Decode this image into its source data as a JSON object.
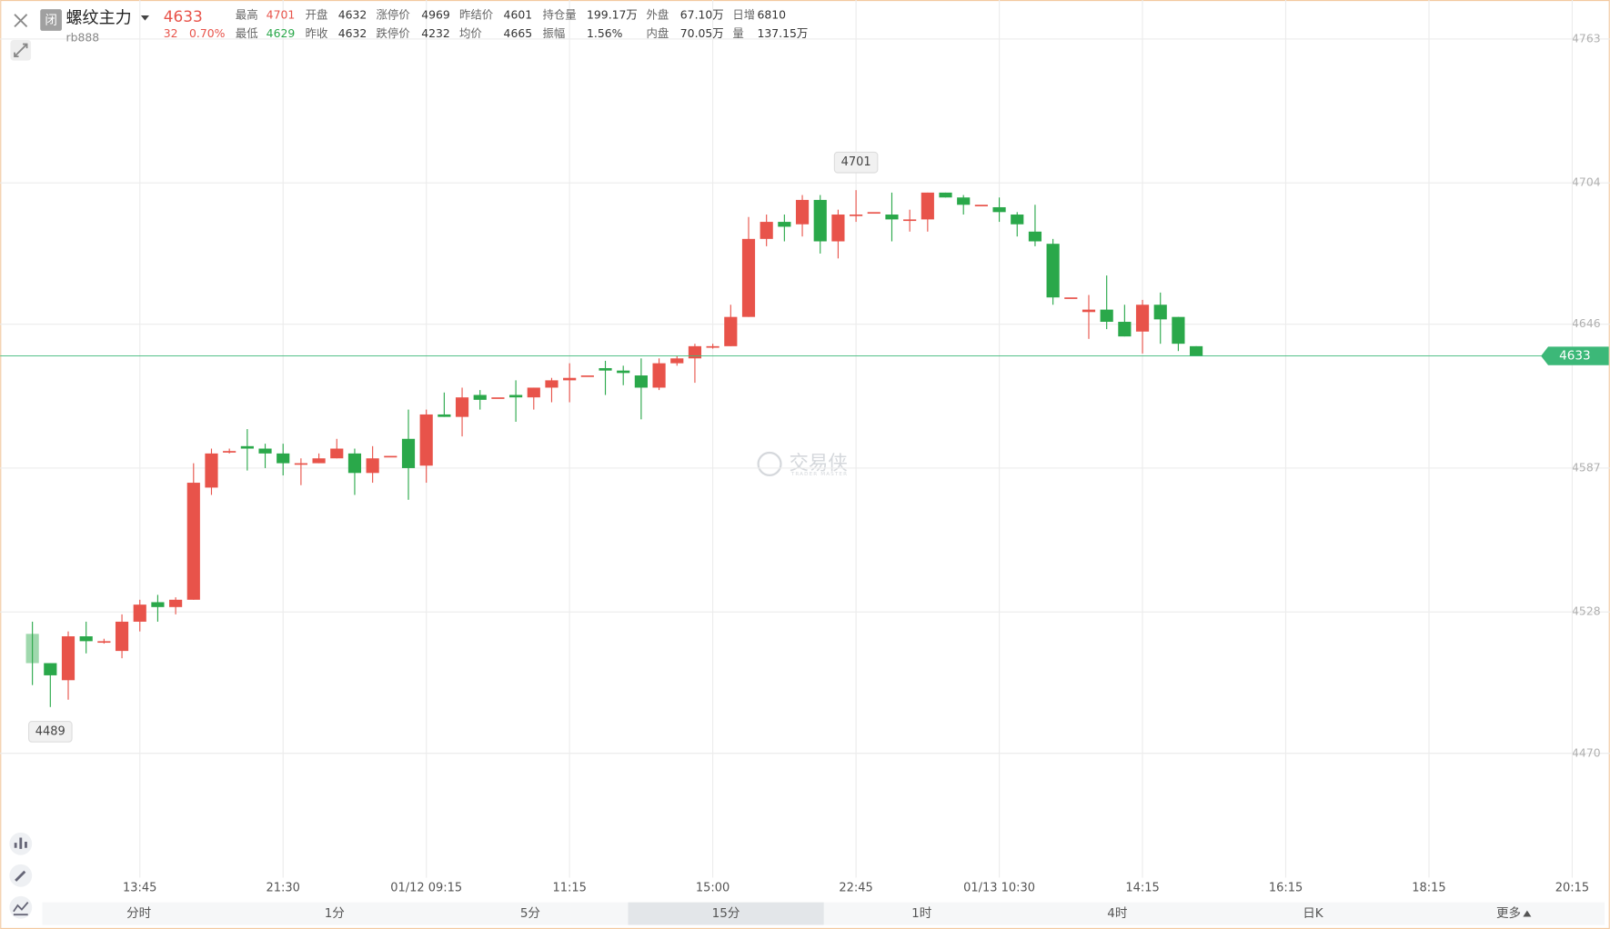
{
  "header": {
    "badge": "闭",
    "title": "螺纹主力",
    "code": "rb888",
    "price": "4633",
    "change": "32",
    "change_pct": "0.70%",
    "stats": [
      [
        {
          "label": "最高",
          "value": "4701",
          "color": "#e8534a"
        },
        {
          "label": "最低",
          "value": "4629",
          "color": "#2aa84a"
        }
      ],
      [
        {
          "label": "开盘",
          "value": "4632",
          "color": "#333333"
        },
        {
          "label": "昨收",
          "value": "4632",
          "color": "#333333"
        }
      ],
      [
        {
          "label": "涨停价",
          "value": "4969",
          "color": "#333333"
        },
        {
          "label": "跌停价",
          "value": "4232",
          "color": "#333333"
        }
      ],
      [
        {
          "label": "昨结价",
          "value": "4601",
          "color": "#333333"
        },
        {
          "label": "均价",
          "value": "4665",
          "color": "#333333"
        }
      ],
      [
        {
          "label": "持仓量",
          "value": "199.17万",
          "color": "#333333"
        },
        {
          "label": "振幅",
          "value": "1.56%",
          "color": "#333333"
        }
      ],
      [
        {
          "label": "外盘",
          "value": "67.10万",
          "color": "#333333"
        },
        {
          "label": "内盘",
          "value": "70.05万",
          "color": "#333333"
        }
      ],
      [
        {
          "label": "日增",
          "value": "6810",
          "color": "#333333"
        },
        {
          "label": "量",
          "value": "137.15万",
          "color": "#333333"
        }
      ]
    ]
  },
  "chart_data": {
    "type": "candlestick",
    "open": [
      4519,
      4507,
      4500,
      4518,
      4516,
      4512,
      4524,
      4532,
      4530,
      4533,
      4579,
      4594,
      4596,
      4595,
      4593,
      4589,
      4589,
      4591,
      4593,
      4585,
      4592,
      4599,
      4588,
      4609,
      4608,
      4617,
      4616,
      4617,
      4616,
      4620,
      4623,
      4625,
      4628,
      4627,
      4625,
      4620,
      4630,
      4632,
      4637,
      4637,
      4649,
      4681,
      4688,
      4687,
      4697,
      4680,
      4691,
      4692,
      4691,
      4689,
      4689,
      4700,
      4698,
      4695,
      4694,
      4691,
      4684,
      4679,
      4657,
      4651,
      4652,
      4647,
      4643,
      4654,
      4649,
      4637
    ],
    "high": [
      4524,
      4507,
      4520,
      4524,
      4517,
      4527,
      4533,
      4535,
      4534,
      4589,
      4595,
      4595,
      4603,
      4597,
      4597,
      4591,
      4593,
      4599,
      4595,
      4596,
      4592,
      4611,
      4611,
      4618,
      4620,
      4619,
      4616,
      4623,
      4620,
      4624,
      4630,
      4625,
      4631,
      4629,
      4632,
      4632,
      4633,
      4638,
      4638,
      4654,
      4690,
      4691,
      4691,
      4699,
      4699,
      4693,
      4701,
      4692,
      4700,
      4693,
      4700,
      4700,
      4699,
      4695,
      4698,
      4692,
      4695,
      4681,
      4657,
      4658,
      4666,
      4654,
      4656,
      4659,
      4649,
      4637
    ],
    "low": [
      4498,
      4489,
      4492,
      4511,
      4515,
      4509,
      4520,
      4524,
      4527,
      4533,
      4576,
      4593,
      4586,
      4587,
      4584,
      4580,
      4589,
      4591,
      4576,
      4581,
      4592,
      4574,
      4581,
      4608,
      4600,
      4611,
      4616,
      4606,
      4611,
      4614,
      4614,
      4625,
      4617,
      4621,
      4607,
      4619,
      4629,
      4622,
      4636,
      4637,
      4649,
      4678,
      4680,
      4682,
      4675,
      4673,
      4688,
      4692,
      4680,
      4684,
      4684,
      4698,
      4691,
      4695,
      4688,
      4682,
      4678,
      4654,
      4657,
      4640,
      4644,
      4641,
      4634,
      4638,
      4635,
      4633
    ],
    "close": [
      4507,
      4502,
      4518,
      4516,
      4516,
      4524,
      4531,
      4530,
      4533,
      4581,
      4593,
      4594,
      4595,
      4593,
      4589,
      4589,
      4591,
      4595,
      4585,
      4591,
      4592,
      4587,
      4609,
      4608,
      4616,
      4615,
      4616,
      4616,
      4620,
      4623,
      4624,
      4625,
      4627,
      4626,
      4620,
      4630,
      4632,
      4637,
      4637,
      4649,
      4681,
      4688,
      4686,
      4697,
      4680,
      4691,
      4691,
      4692,
      4689,
      4689,
      4700,
      4698,
      4695,
      4695,
      4692,
      4687,
      4680,
      4657,
      4657,
      4652,
      4647,
      4641,
      4654,
      4648,
      4638,
      4633
    ],
    "up_color": "#e8534a",
    "down_color": "#2aa84a",
    "ylim": [
      4419,
      4779
    ],
    "yticks": [
      4470,
      4528,
      4587,
      4646,
      4704,
      4763
    ],
    "xlim": [
      -1.8,
      88.1
    ],
    "xticks": [
      {
        "value": 6,
        "label": "13:45"
      },
      {
        "value": 14,
        "label": "21:30"
      },
      {
        "value": 22,
        "label": "01/12 09:15"
      },
      {
        "value": 30,
        "label": "11:15"
      },
      {
        "value": 38,
        "label": "15:00"
      },
      {
        "value": 46,
        "label": "22:45"
      },
      {
        "value": 54,
        "label": "01/13 10:30"
      },
      {
        "value": 62,
        "label": "14:15"
      },
      {
        "value": 70,
        "label": "16:15"
      },
      {
        "value": 78,
        "label": "18:15"
      },
      {
        "value": 86,
        "label": "20:15"
      }
    ],
    "grid": true,
    "max_label": 4701,
    "min_label": 4489,
    "last_price": 4633,
    "last_price_color": "#3cb878",
    "watermark": {
      "text": "交易侠",
      "subtext": "TRADER MASTER"
    }
  },
  "tabs": {
    "items": [
      "分时",
      "1分",
      "5分",
      "15分",
      "1时",
      "4时",
      "日K",
      "更多"
    ],
    "selected": 3
  }
}
